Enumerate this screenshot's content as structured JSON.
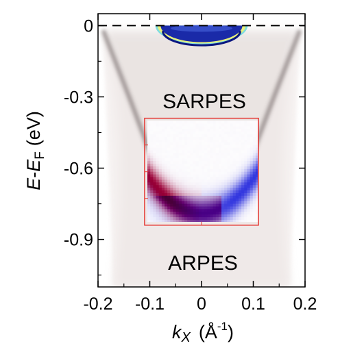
{
  "chart_data": {
    "type": "heatmap",
    "title": "",
    "xlabel": {
      "main": "k",
      "sub": "X",
      "unit_open": "(Å",
      "unit_exp": "-1",
      "unit_close": ")"
    },
    "ylabel": {
      "main": "E",
      "dash": "-",
      "sub_main": "E",
      "sub": "F",
      "unit": "(eV)"
    },
    "xlim": [
      -0.2,
      0.2
    ],
    "ylim": [
      -1.1,
      0.05
    ],
    "x_ticks": [
      -0.2,
      -0.1,
      0,
      0.1,
      0.2
    ],
    "x_tick_labels": [
      "-0.2",
      "-0.1",
      "0",
      "0.1",
      "0.2"
    ],
    "y_ticks": [
      0,
      -0.3,
      -0.6,
      -0.9
    ],
    "y_tick_labels": [
      "0",
      "-0.3",
      "-0.6",
      "-0.9"
    ],
    "fermi_level": 0,
    "series": [
      {
        "name": "ARPES",
        "dispersion": {
          "k": [
            -0.19,
            -0.14,
            -0.1,
            -0.06,
            -0.03,
            0,
            0.03,
            0.06,
            0.1,
            0.14,
            0.19
          ],
          "E": [
            -0.02,
            -0.3,
            -0.53,
            -0.69,
            -0.76,
            -0.79,
            -0.76,
            -0.69,
            -0.53,
            -0.3,
            -0.02
          ]
        }
      },
      {
        "name": "SARPES",
        "k_range": [
          -0.11,
          0.11
        ],
        "E_range": [
          -0.84,
          -0.39
        ]
      }
    ],
    "annotations": [
      {
        "text": "SARPES",
        "color": "#ff0000"
      },
      {
        "text": "ARPES",
        "color": "#000000"
      }
    ],
    "colors": {
      "sarpes_frame": "#e53935",
      "spin_up": "#e8453a",
      "spin_down": "#3b4fd6",
      "band_gray": "#6a5e5e"
    },
    "grid": false
  }
}
